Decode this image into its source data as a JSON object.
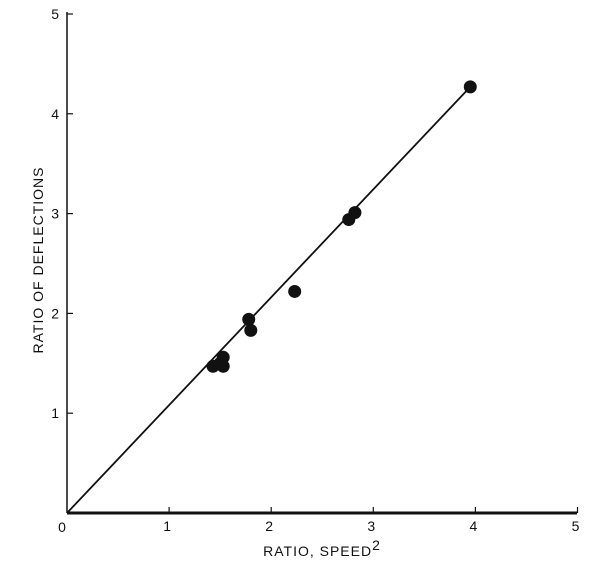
{
  "chart_data": {
    "type": "scatter",
    "title": "",
    "xlabel": "RATIO, SPEED",
    "xlabel_superscript": "2",
    "ylabel": "RATIO OF DEFLECTIONS",
    "xlim": [
      0,
      5
    ],
    "ylim": [
      0,
      5
    ],
    "x_ticks": [
      1,
      2,
      3,
      4,
      5
    ],
    "y_ticks": [
      1,
      2,
      3,
      4,
      5
    ],
    "origin_label": "0",
    "grid": false,
    "series": [
      {
        "points": [
          {
            "x": 1.43,
            "y": 1.47
          },
          {
            "x": 1.5,
            "y": 1.5
          },
          {
            "x": 1.53,
            "y": 1.56
          },
          {
            "x": 1.53,
            "y": 1.47
          },
          {
            "x": 1.78,
            "y": 1.94
          },
          {
            "x": 1.8,
            "y": 1.83
          },
          {
            "x": 2.23,
            "y": 2.22
          },
          {
            "x": 2.76,
            "y": 2.94
          },
          {
            "x": 2.82,
            "y": 3.01
          },
          {
            "x": 3.95,
            "y": 4.27
          }
        ]
      }
    ],
    "fit_line": {
      "x": [
        0,
        3.95
      ],
      "y": [
        0,
        4.27
      ]
    },
    "colors": {
      "marks": "#111111",
      "background": "#ffffff"
    }
  }
}
